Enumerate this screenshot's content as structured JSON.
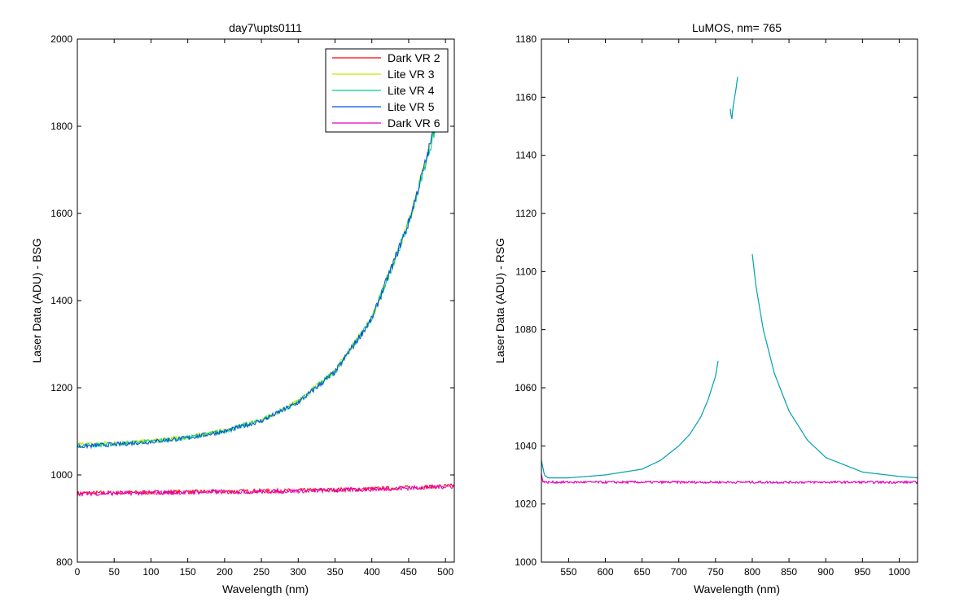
{
  "chart_data": [
    {
      "type": "line",
      "title": "day7\\upts0111",
      "xlabel": "Wavelength (nm)",
      "ylabel": "Laser Data (ADU) - BSG",
      "xlim": [
        0,
        512
      ],
      "ylim": [
        800,
        2000
      ],
      "xticks": [
        0,
        50,
        100,
        150,
        200,
        250,
        300,
        350,
        400,
        450,
        500
      ],
      "yticks": [
        800,
        1000,
        1200,
        1400,
        1600,
        1800,
        2000
      ],
      "legend": "top-right",
      "series": [
        {
          "name": "Dark VR 2",
          "color": "#ff0000",
          "x": [
            0,
            50,
            100,
            150,
            200,
            250,
            300,
            350,
            400,
            450,
            512
          ],
          "y": [
            958,
            959,
            960,
            961,
            962,
            963,
            964,
            966,
            968,
            971,
            975
          ]
        },
        {
          "name": "Lite VR 3",
          "color": "#c8e600",
          "x": [
            0,
            50,
            100,
            150,
            200,
            250,
            300,
            350,
            400,
            450,
            475,
            486
          ],
          "y": [
            1070,
            1073,
            1078,
            1087,
            1102,
            1126,
            1168,
            1240,
            1360,
            1580,
            1730,
            1800
          ]
        },
        {
          "name": "Lite VR 4",
          "color": "#00d080",
          "x": [
            0,
            50,
            100,
            150,
            200,
            250,
            300,
            350,
            400,
            450,
            475,
            487
          ],
          "y": [
            1067,
            1071,
            1077,
            1086,
            1101,
            1125,
            1167,
            1238,
            1358,
            1578,
            1728,
            1800
          ]
        },
        {
          "name": "Lite VR 5",
          "color": "#0050e0",
          "x": [
            0,
            50,
            100,
            150,
            200,
            250,
            300,
            350,
            400,
            450,
            475,
            485
          ],
          "y": [
            1065,
            1070,
            1076,
            1085,
            1100,
            1124,
            1166,
            1236,
            1358,
            1578,
            1730,
            1800
          ]
        },
        {
          "name": "Dark VR 6",
          "color": "#e000c0",
          "x": [
            0,
            50,
            100,
            150,
            200,
            250,
            300,
            350,
            400,
            450,
            512
          ],
          "y": [
            957,
            958,
            959,
            960,
            961,
            962,
            963,
            965,
            967,
            970,
            974
          ]
        }
      ]
    },
    {
      "type": "line",
      "title": "LuMOS, nm= 765",
      "xlabel": "Wavelength (nm)",
      "ylabel": "Laser Data (ADU) - RSG",
      "xlim": [
        513,
        1025
      ],
      "ylim": [
        1000,
        1180
      ],
      "xticks": [
        550,
        600,
        650,
        700,
        750,
        800,
        850,
        900,
        950,
        1000
      ],
      "yticks": [
        1000,
        1020,
        1040,
        1060,
        1080,
        1100,
        1120,
        1140,
        1160,
        1180
      ],
      "series": [
        {
          "color": "#00a0b0",
          "segments": [
            {
              "x": [
                513,
                517,
                522,
                550,
                600,
                650,
                675,
                700,
                715,
                730,
                740,
                750,
                754
              ],
              "y": [
                1035,
                1030,
                1029,
                1029,
                1030,
                1032,
                1035,
                1040,
                1044,
                1050,
                1056,
                1064,
                1070
              ]
            },
            {
              "x": [
                770,
                772,
                774,
                776,
                778,
                780
              ],
              "y": [
                1156,
                1152,
                1157,
                1160,
                1163,
                1167
              ]
            },
            {
              "x": [
                800,
                805,
                815,
                830,
                850,
                875,
                900,
                950,
                1000,
                1025
              ],
              "y": [
                1106,
                1095,
                1080,
                1065,
                1052,
                1042,
                1036,
                1031,
                1029.5,
                1029
              ]
            }
          ]
        },
        {
          "color": "#e000c0",
          "segments": [
            {
              "x": [
                513,
                515,
                518,
                525,
                600,
                700,
                800,
                900,
                1025
              ],
              "y": [
                1030,
                1028,
                1027.5,
                1027.5,
                1027.5,
                1027.5,
                1027.5,
                1027.5,
                1027.5
              ]
            }
          ]
        }
      ]
    }
  ]
}
